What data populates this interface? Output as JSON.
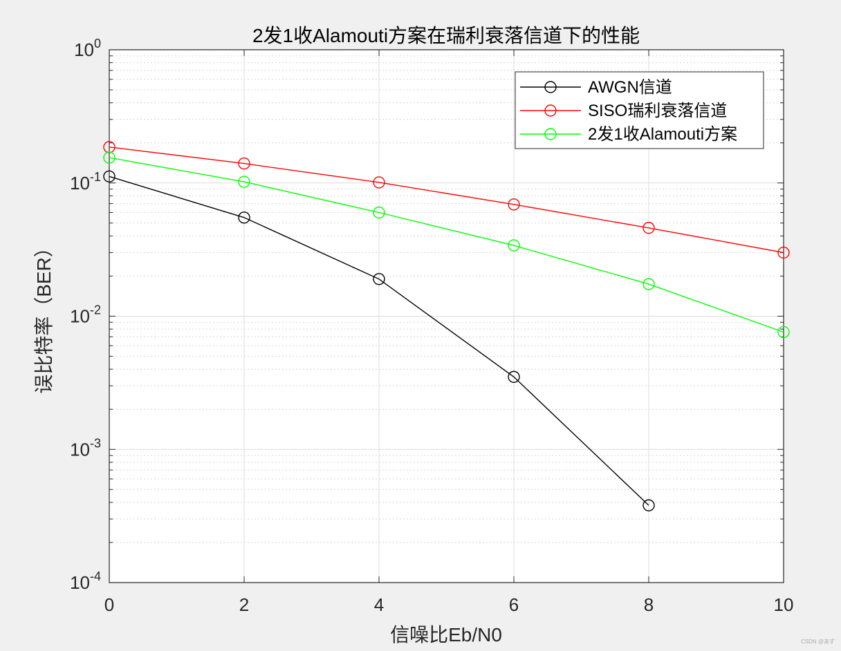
{
  "chart_data": {
    "type": "line",
    "title": "2发1收Alamouti方案在瑞利衰落信道下的性能",
    "xlabel": "信噪比Eb/N0",
    "ylabel": "误比特率（BER）",
    "xlim": [
      0,
      10
    ],
    "ylim": [
      0.0001,
      1
    ],
    "yscale": "log",
    "x_ticks": [
      0,
      2,
      4,
      6,
      8,
      10
    ],
    "x_tick_labels": [
      "0",
      "2",
      "4",
      "6",
      "8",
      "10"
    ],
    "y_ticks": [
      {
        "value": 1,
        "base": "10",
        "exp": "0"
      },
      {
        "value": 0.1,
        "base": "10",
        "exp": "-1"
      },
      {
        "value": 0.01,
        "base": "10",
        "exp": "-2"
      },
      {
        "value": 0.001,
        "base": "10",
        "exp": "-3"
      },
      {
        "value": 0.0001,
        "base": "10",
        "exp": "-4"
      }
    ],
    "grid": true,
    "minor_grid": true,
    "legend_position": "top-right",
    "series": [
      {
        "name": "AWGN信道",
        "color": "#000000",
        "marker": "circle",
        "x": [
          0,
          2,
          4,
          6,
          8
        ],
        "y": [
          0.112,
          0.055,
          0.019,
          0.0035,
          0.00038
        ]
      },
      {
        "name": "SISO瑞利衰落信道",
        "color": "#ff0000",
        "marker": "circle",
        "x": [
          0,
          2,
          4,
          6,
          8,
          10
        ],
        "y": [
          0.186,
          0.14,
          0.101,
          0.069,
          0.046,
          0.03
        ]
      },
      {
        "name": "2发1收Alamouti方案",
        "color": "#00ff00",
        "marker": "circle",
        "x": [
          0,
          2,
          4,
          6,
          8,
          10
        ],
        "y": [
          0.155,
          0.102,
          0.06,
          0.034,
          0.0174,
          0.0076
        ]
      }
    ]
  },
  "watermark": "CSDN @あず"
}
